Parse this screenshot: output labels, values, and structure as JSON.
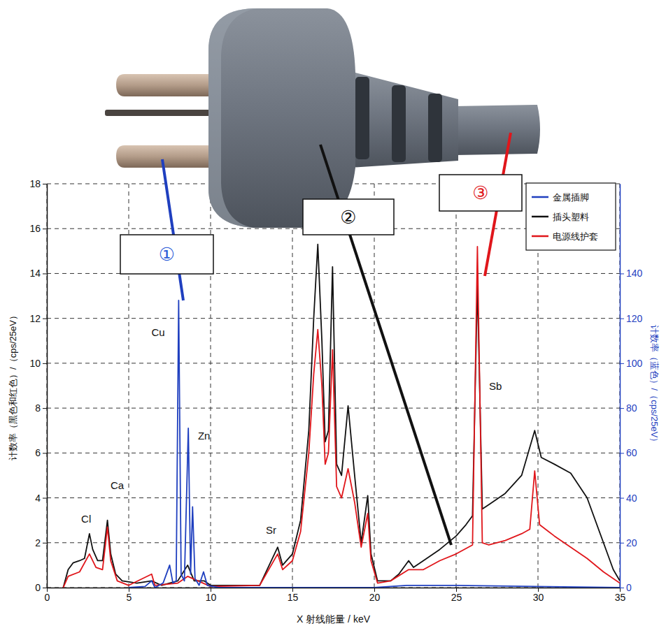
{
  "chart_data": {
    "type": "line",
    "x_label": "X 射线能量 / keV",
    "y_label": "计数率（黑色和红色）/（cps/25eV）",
    "y2_label": "计数率（蓝色）/（cps/25eV）",
    "xlim": [
      0,
      35
    ],
    "xticks": [
      0,
      5,
      10,
      15,
      20,
      25,
      30,
      35
    ],
    "ylim": [
      0,
      18
    ],
    "yticks": [
      0,
      2,
      4,
      6,
      8,
      10,
      12,
      14,
      16,
      18
    ],
    "y2lim": [
      0,
      180
    ],
    "y2ticks": [
      0,
      20,
      40,
      60,
      80,
      100,
      120,
      140
    ],
    "grid": true,
    "legend": "upper right",
    "series": [
      {
        "name": "金属插脚",
        "color": "#1f3fbf",
        "axis": "y2",
        "x": [
          5,
          6.0,
          6.4,
          6.6,
          7.1,
          7.5,
          7.7,
          7.9,
          8.05,
          8.2,
          8.4,
          8.64,
          8.78,
          8.9,
          9.05,
          9.3,
          9.57,
          9.8,
          10.5,
          20,
          22,
          25,
          35
        ],
        "values": [
          0,
          0.5,
          3,
          0,
          2,
          10,
          2,
          3,
          128,
          6,
          3,
          71,
          6,
          36,
          4,
          1,
          7,
          1,
          0,
          0,
          1,
          1,
          0
        ]
      },
      {
        "name": "插头塑料",
        "color": "#111111",
        "x": [
          1.0,
          1.3,
          1.6,
          2.0,
          2.3,
          2.6,
          2.8,
          3.1,
          3.4,
          3.7,
          3.9,
          4.2,
          4.6,
          5.5,
          6.4,
          7.0,
          8.0,
          8.6,
          9.0,
          9.6,
          10.0,
          13.0,
          14.1,
          14.4,
          15.0,
          15.5,
          16.0,
          16.3,
          16.55,
          16.8,
          17.0,
          17.2,
          17.45,
          17.7,
          18.0,
          18.4,
          18.8,
          19.2,
          19.6,
          19.8,
          20.2,
          21.0,
          21.5,
          22.1,
          22.4,
          23.0,
          24.0,
          25.0,
          25.6,
          26.0,
          26.3,
          26.6,
          27.0,
          28.0,
          29.0,
          29.8,
          30.2,
          31.0,
          32.0,
          33.0,
          34.0,
          34.6,
          35.0
        ],
        "values": [
          0,
          0.8,
          1.1,
          1.2,
          1.3,
          2.4,
          1.7,
          1.2,
          1.2,
          3.0,
          1.5,
          0.6,
          0.3,
          0.2,
          0.3,
          0.1,
          0.3,
          1.0,
          0.3,
          0.3,
          0.1,
          0.1,
          1.8,
          1.0,
          1.5,
          3.0,
          7.0,
          12.0,
          15.3,
          11.0,
          6.5,
          7.0,
          14.3,
          5.5,
          5.0,
          8.1,
          5.0,
          2.0,
          4.1,
          1.5,
          0.3,
          0.3,
          0.6,
          1.2,
          0.9,
          1.2,
          1.7,
          2.3,
          2.8,
          3.2,
          13.5,
          3.5,
          3.7,
          4.2,
          5.0,
          7.0,
          5.8,
          5.5,
          5.1,
          4.0,
          2.0,
          0.8,
          0.3
        ]
      },
      {
        "name": "电源线护套",
        "color": "#e0161b",
        "x": [
          1.0,
          1.3,
          2.0,
          2.6,
          3.0,
          3.4,
          3.7,
          3.9,
          4.3,
          5.0,
          6.4,
          6.6,
          8.0,
          8.6,
          10.0,
          13.0,
          14.1,
          14.4,
          15.0,
          15.5,
          16.0,
          16.3,
          16.55,
          16.8,
          17.0,
          17.2,
          17.45,
          17.7,
          18.0,
          18.4,
          18.8,
          19.2,
          19.6,
          19.8,
          20.2,
          21.0,
          22.1,
          23.0,
          24.0,
          25.0,
          26.0,
          26.3,
          26.6,
          27.0,
          28.0,
          29.0,
          29.5,
          29.8,
          30.1,
          31.0,
          32.0,
          33.0,
          34.0,
          35.0
        ],
        "values": [
          0,
          0.5,
          0.7,
          1.5,
          0.9,
          0.8,
          2.7,
          1.2,
          0.3,
          0.1,
          0.6,
          0.1,
          0.2,
          0.5,
          0.05,
          0.1,
          1.5,
          0.8,
          1.2,
          2.5,
          6.0,
          9.5,
          11.5,
          9.0,
          5.5,
          6.0,
          10.6,
          4.5,
          4.0,
          5.3,
          3.8,
          1.8,
          3.3,
          1.2,
          0.2,
          0.3,
          0.8,
          0.8,
          1.2,
          1.5,
          1.9,
          15.2,
          2.0,
          1.9,
          2.1,
          2.4,
          2.6,
          5.2,
          2.8,
          2.3,
          1.8,
          1.3,
          0.7,
          0.2
        ]
      }
    ],
    "annotations": [
      {
        "text": "Cl",
        "x": 2.4,
        "y": 2.9
      },
      {
        "text": "Ca",
        "x": 4.3,
        "y": 4.4
      },
      {
        "text": "Cu",
        "x": 6.8,
        "y": 11.2
      },
      {
        "text": "Zn",
        "x": 9.6,
        "y": 6.6
      },
      {
        "text": "Sr",
        "x": 13.7,
        "y": 2.4
      },
      {
        "text": "Sb",
        "x": 27.4,
        "y": 8.8
      }
    ],
    "callouts": [
      {
        "text": "①",
        "color": "#2a5bd7"
      },
      {
        "text": "②",
        "color": "#111111"
      },
      {
        "text": "③",
        "color": "#e0161b"
      }
    ]
  }
}
